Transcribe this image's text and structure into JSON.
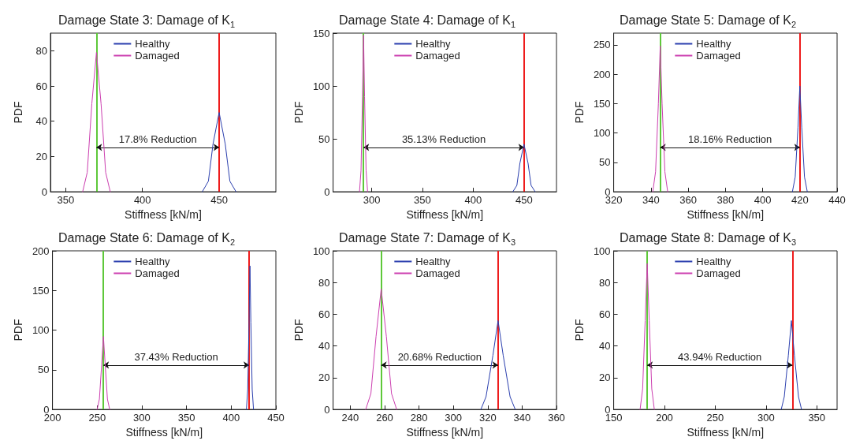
{
  "chart_data": [
    {
      "type": "line",
      "title": "Damage State 3: Damage of K$_{1}$",
      "xlabel": "Stiffness [kN/m]",
      "ylabel": "PDF",
      "xlim": [
        340,
        487
      ],
      "xticks": [
        350,
        400,
        450
      ],
      "ylim": [
        0,
        90
      ],
      "yticks": [
        0,
        20,
        40,
        60,
        80
      ],
      "grid": false,
      "legend": "top",
      "marker": "none",
      "line_style": "solid",
      "series": [
        {
          "name": "Healthy",
          "color": "#2b3fae",
          "x": [
            439,
            443,
            446,
            450,
            454,
            457,
            461
          ],
          "values": [
            0,
            6,
            27,
            45,
            27,
            6,
            0
          ]
        },
        {
          "name": "Damaged",
          "color": "#cc3fb0",
          "x": [
            361,
            364,
            367,
            370,
            373,
            376,
            379
          ],
          "values": [
            0,
            11,
            50,
            79,
            50,
            11,
            0
          ]
        }
      ],
      "ref_lines": [
        {
          "axis": "x",
          "value": 370,
          "color": "#5ec83a"
        },
        {
          "axis": "x",
          "value": 450,
          "color": "#ee1c1c"
        }
      ],
      "annotations": [
        "17.8% Reduction"
      ]
    },
    {
      "type": "line",
      "title": "Damage State 4: Damage of K$_{1}$",
      "xlabel": "Stiffness [kN/m]",
      "ylabel": "PDF",
      "xlim": [
        262,
        482
      ],
      "xticks": [
        300,
        350,
        400,
        450
      ],
      "ylim": [
        0,
        150
      ],
      "yticks": [
        0,
        50,
        100,
        150
      ],
      "grid": false,
      "legend": "top",
      "marker": "none",
      "line_style": "solid",
      "series": [
        {
          "name": "Healthy",
          "color": "#2b3fae",
          "x": [
            439,
            443,
            446,
            450,
            454,
            457,
            461
          ],
          "values": [
            0,
            6,
            27,
            45,
            27,
            6,
            0
          ]
        },
        {
          "name": "Damaged",
          "color": "#cc3fb0",
          "x": [
            288,
            289.5,
            291,
            292,
            293,
            294.5,
            296
          ],
          "values": [
            0,
            20,
            90,
            148,
            90,
            20,
            0
          ]
        }
      ],
      "ref_lines": [
        {
          "axis": "x",
          "value": 292,
          "color": "#5ec83a"
        },
        {
          "axis": "x",
          "value": 450,
          "color": "#ee1c1c"
        }
      ],
      "annotations": [
        "35.13% Reduction"
      ]
    },
    {
      "type": "line",
      "title": "Damage State 5: Damage of K$_{2}$",
      "xlabel": "Stiffness [kN/m]",
      "ylabel": "PDF",
      "xlim": [
        320,
        440
      ],
      "xticks": [
        320,
        340,
        360,
        380,
        400,
        420,
        440
      ],
      "ylim": [
        0,
        270
      ],
      "yticks": [
        0,
        50,
        100,
        150,
        200,
        250
      ],
      "grid": false,
      "legend": "top",
      "marker": "none",
      "line_style": "solid",
      "series": [
        {
          "name": "Healthy",
          "color": "#2b3fae",
          "x": [
            416,
            417.5,
            419,
            420,
            421,
            422.5,
            424
          ],
          "values": [
            0,
            25,
            110,
            180,
            110,
            25,
            0
          ]
        },
        {
          "name": "Damaged",
          "color": "#cc3fb0",
          "x": [
            341,
            342.5,
            344,
            345,
            346,
            347.5,
            349
          ],
          "values": [
            0,
            34,
            150,
            248,
            150,
            34,
            0
          ]
        }
      ],
      "ref_lines": [
        {
          "axis": "x",
          "value": 345,
          "color": "#5ec83a"
        },
        {
          "axis": "x",
          "value": 420,
          "color": "#ee1c1c"
        }
      ],
      "annotations": [
        "18.16% Reduction"
      ]
    },
    {
      "type": "line",
      "title": "Damage State 6: Damage of K$_{2}$",
      "xlabel": "Stiffness [kN/m]",
      "ylabel": "PDF",
      "xlim": [
        200,
        450
      ],
      "xticks": [
        200,
        250,
        300,
        350,
        400,
        450
      ],
      "ylim": [
        0,
        200
      ],
      "yticks": [
        0,
        50,
        100,
        150,
        200
      ],
      "grid": false,
      "legend": "top",
      "marker": "none",
      "line_style": "solid",
      "series": [
        {
          "name": "Healthy",
          "color": "#2b3fae",
          "x": [
            417,
            418.5,
            420,
            421,
            422,
            423.5,
            425
          ],
          "values": [
            0,
            25,
            110,
            181,
            110,
            25,
            0
          ]
        },
        {
          "name": "Damaged",
          "color": "#cc3fb0",
          "x": [
            250,
            252.5,
            255,
            257,
            259,
            261.5,
            264
          ],
          "values": [
            0,
            13,
            56,
            92,
            56,
            13,
            0
          ]
        }
      ],
      "ref_lines": [
        {
          "axis": "x",
          "value": 257,
          "color": "#5ec83a"
        },
        {
          "axis": "x",
          "value": 420,
          "color": "#ee1c1c"
        }
      ],
      "annotations": [
        "37.43% Reduction"
      ]
    },
    {
      "type": "line",
      "title": "Damage State 7: Damage of K$_{3}$",
      "xlabel": "Stiffness [kN/m]",
      "ylabel": "PDF",
      "xlim": [
        230,
        360
      ],
      "xticks": [
        240,
        260,
        280,
        300,
        320,
        340,
        360
      ],
      "ylim": [
        0,
        100
      ],
      "yticks": [
        0,
        20,
        40,
        60,
        80,
        100
      ],
      "grid": false,
      "legend": "top",
      "marker": "none",
      "line_style": "solid",
      "series": [
        {
          "name": "Healthy",
          "color": "#2b3fae",
          "x": [
            316,
            319,
            323,
            326,
            329,
            333,
            336
          ],
          "values": [
            0,
            8,
            34,
            56,
            34,
            8,
            0
          ]
        },
        {
          "name": "Damaged",
          "color": "#cc3fb0",
          "x": [
            249,
            252,
            255,
            258,
            261,
            264,
            267
          ],
          "values": [
            0,
            10,
            46,
            76,
            46,
            10,
            0
          ]
        }
      ],
      "ref_lines": [
        {
          "axis": "x",
          "value": 258,
          "color": "#5ec83a"
        },
        {
          "axis": "x",
          "value": 326,
          "color": "#ee1c1c"
        }
      ],
      "annotations": [
        "20.68% Reduction"
      ]
    },
    {
      "type": "line",
      "title": "Damage State 8: Damage of K$_{3}$",
      "xlabel": "Stiffness [kN/m]",
      "ylabel": "PDF",
      "xlim": [
        150,
        370
      ],
      "xticks": [
        150,
        200,
        250,
        300,
        350
      ],
      "ylim": [
        0,
        100
      ],
      "yticks": [
        0,
        20,
        40,
        60,
        80,
        100
      ],
      "grid": false,
      "legend": "top",
      "marker": "none",
      "line_style": "solid",
      "series": [
        {
          "name": "Healthy",
          "color": "#2b3fae",
          "x": [
            315,
            318,
            322,
            325,
            328,
            332,
            335
          ],
          "values": [
            0,
            8,
            34,
            56,
            34,
            8,
            0
          ]
        },
        {
          "name": "Damaged",
          "color": "#cc3fb0",
          "x": [
            176,
            178.5,
            181,
            183,
            185,
            187.5,
            190
          ],
          "values": [
            0,
            13,
            56,
            92,
            56,
            13,
            0
          ]
        }
      ],
      "ref_lines": [
        {
          "axis": "x",
          "value": 183,
          "color": "#5ec83a"
        },
        {
          "axis": "x",
          "value": 326,
          "color": "#ee1c1c"
        }
      ],
      "annotations": [
        "43.94% Reduction"
      ]
    }
  ]
}
